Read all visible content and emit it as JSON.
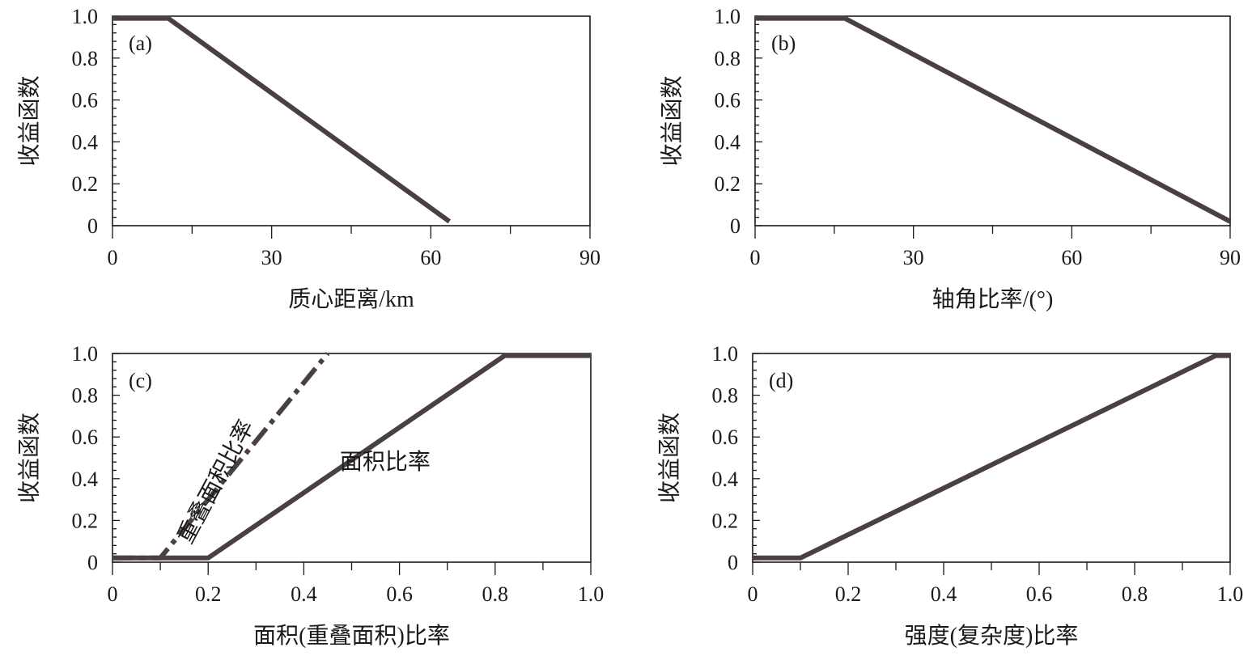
{
  "chart_data": [
    {
      "id": "a",
      "type": "line",
      "panel_label": "(a)",
      "xlabel": "质心距离/km",
      "ylabel": "收益函数",
      "xlim": [
        0,
        90
      ],
      "ylim": [
        0,
        1.0
      ],
      "xticks": [
        0,
        30,
        60,
        90
      ],
      "xtick_labels": [
        "0",
        "30",
        "60",
        "90"
      ],
      "yticks": [
        0,
        0.2,
        0.4,
        0.6,
        0.8,
        1.0
      ],
      "ytick_labels": [
        "0",
        "0.2",
        "0.4",
        "0.6",
        "0.8",
        "1.0"
      ],
      "grid": false,
      "series": [
        {
          "style": "solid",
          "color": "#4a4040",
          "x": [
            0,
            10.5,
            63.5
          ],
          "y": [
            0.99,
            0.99,
            0.02
          ]
        }
      ],
      "annotations": []
    },
    {
      "id": "b",
      "type": "line",
      "panel_label": "(b)",
      "xlabel": "轴角比率/(°)",
      "ylabel": "收益函数",
      "xlim": [
        0,
        90
      ],
      "ylim": [
        0,
        1.0
      ],
      "xticks": [
        0,
        30,
        60,
        90
      ],
      "xtick_labels": [
        "0",
        "30",
        "60",
        "90"
      ],
      "yticks": [
        0,
        0.2,
        0.4,
        0.6,
        0.8,
        1.0
      ],
      "ytick_labels": [
        "0",
        "0.2",
        "0.4",
        "0.6",
        "0.8",
        "1.0"
      ],
      "grid": false,
      "series": [
        {
          "style": "solid",
          "color": "#4a4040",
          "x": [
            0,
            17,
            90
          ],
          "y": [
            0.99,
            0.99,
            0.02
          ]
        }
      ],
      "annotations": []
    },
    {
      "id": "c",
      "type": "line",
      "panel_label": "(c)",
      "xlabel": "面积(重叠面积)比率",
      "ylabel": "收益函数",
      "xlim": [
        0,
        1.0
      ],
      "ylim": [
        0,
        1.0
      ],
      "xticks": [
        0,
        0.2,
        0.4,
        0.6,
        0.8,
        1.0
      ],
      "xtick_labels": [
        "0",
        "0.2",
        "0.4",
        "0.6",
        "0.8",
        "1.0"
      ],
      "yticks": [
        0,
        0.2,
        0.4,
        0.6,
        0.8,
        1.0
      ],
      "ytick_labels": [
        "0",
        "0.2",
        "0.4",
        "0.6",
        "0.8",
        "1.0"
      ],
      "grid": false,
      "series": [
        {
          "style": "solid",
          "color": "#4a4040",
          "x": [
            0,
            0.2,
            0.82,
            1.0
          ],
          "y": [
            0.02,
            0.02,
            0.99,
            0.99
          ]
        },
        {
          "style": "dashdot",
          "color": "#4a4040",
          "x": [
            0,
            0.1,
            0.45
          ],
          "y": [
            0.02,
            0.02,
            1.0
          ]
        }
      ],
      "annotations": [
        {
          "text": "面积比率",
          "x": 0.57,
          "y": 0.47,
          "rotate": 0
        },
        {
          "text": "重叠面积比率",
          "x": 0.22,
          "y": 0.38,
          "rotate": -62
        }
      ]
    },
    {
      "id": "d",
      "type": "line",
      "panel_label": "(d)",
      "xlabel": "强度(复杂度)比率",
      "ylabel": "收益函数",
      "xlim": [
        0,
        1.0
      ],
      "ylim": [
        0,
        1.0
      ],
      "xticks": [
        0,
        0.2,
        0.4,
        0.6,
        0.8,
        1.0
      ],
      "xtick_labels": [
        "0",
        "0.2",
        "0.4",
        "0.6",
        "0.8",
        "1.0"
      ],
      "yticks": [
        0,
        0.2,
        0.4,
        0.6,
        0.8,
        1.0
      ],
      "ytick_labels": [
        "0",
        "0.2",
        "0.4",
        "0.6",
        "0.8",
        "1.0"
      ],
      "grid": false,
      "series": [
        {
          "style": "solid",
          "color": "#4a4040",
          "x": [
            0,
            0.1,
            0.97,
            1.0
          ],
          "y": [
            0.02,
            0.02,
            0.99,
            0.99
          ]
        }
      ],
      "annotations": []
    }
  ]
}
